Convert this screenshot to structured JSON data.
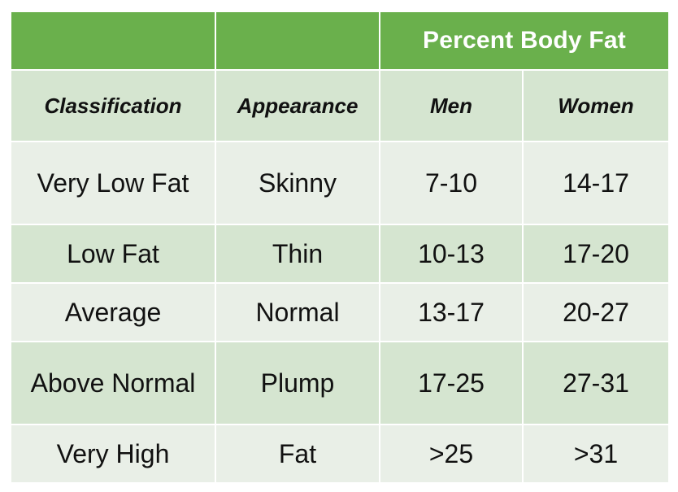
{
  "colors": {
    "header_green": "#6ab04c",
    "row_dark": "#d5e5d0",
    "row_light": "#e9efe7",
    "header_text": "#ffffff"
  },
  "table": {
    "group_header": "Percent Body Fat",
    "columns": [
      "Classification",
      "Appearance",
      "Men",
      "Women"
    ],
    "rows": [
      [
        "Very Low Fat",
        "Skinny",
        "7-10",
        "14-17"
      ],
      [
        "Low Fat",
        "Thin",
        "10-13",
        "17-20"
      ],
      [
        "Average",
        "Normal",
        "13-17",
        "20-27"
      ],
      [
        "Above Normal",
        "Plump",
        "17-25",
        "27-31"
      ],
      [
        "Very High",
        "Fat",
        ">25",
        ">31"
      ]
    ]
  }
}
